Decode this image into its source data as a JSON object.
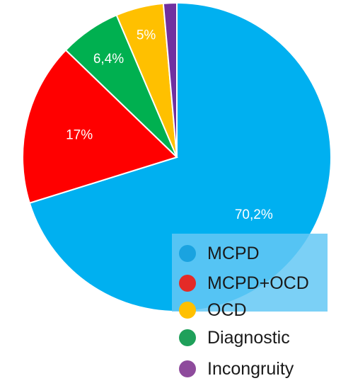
{
  "chart_data": {
    "type": "pie",
    "categories": [
      "MCPD",
      "MCPD+OCD",
      "OCD",
      "Diagnostic",
      "Incongruity"
    ],
    "values": [
      70.2,
      17,
      5,
      6.4,
      1.4
    ],
    "data_labels": [
      "70,2%",
      "17%",
      "5%",
      "6,4%",
      ""
    ],
    "colors": [
      "#00b0f0",
      "#ff0000",
      "#ffc000",
      "#00b050",
      "#7030a0"
    ],
    "legend_labels": [
      "MCPD",
      "MCPD+OCD",
      "OCD",
      "Diagnostic",
      "Incongruity"
    ],
    "legend_colors": [
      "#1aa3e0",
      "#e42b27",
      "#ffc000",
      "#1fa05a",
      "#8e4b9c"
    ],
    "legend_position": "bottom-right",
    "slice_order": [
      0,
      1,
      3,
      2,
      4
    ],
    "start": "top",
    "direction": "clockwise"
  }
}
